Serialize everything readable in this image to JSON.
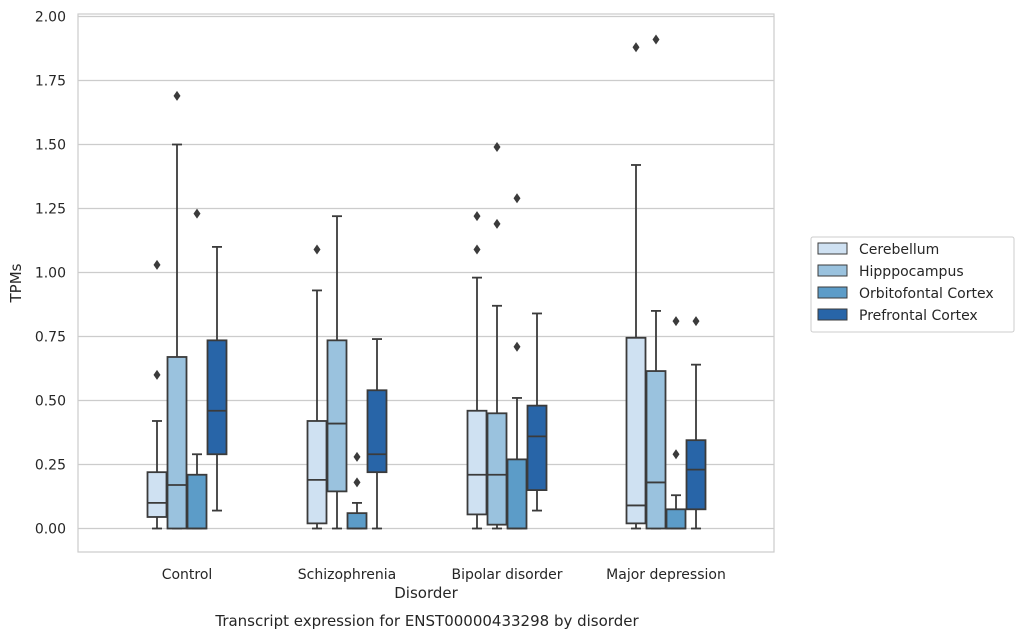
{
  "chart_data": {
    "type": "box",
    "title": "",
    "caption": "Transcript expression for ENST00000433298 by disorder",
    "xlabel": "Disorder",
    "ylabel": "TPMs",
    "ylim": [
      -0.09,
      2.01
    ],
    "yticks": [
      "0.00",
      "0.25",
      "0.50",
      "0.75",
      "1.00",
      "1.25",
      "1.50",
      "1.75",
      "2.00"
    ],
    "grid": "horizontal",
    "legend_position": "right",
    "categories": [
      "Control",
      "Schizophrenia",
      "Bipolar disorder",
      "Major depression"
    ],
    "series": [
      {
        "name": "Cerebellum",
        "color": "#cfe1f2",
        "boxes": [
          {
            "low": 0.0,
            "q1": 0.045,
            "median": 0.1,
            "q3": 0.22,
            "high": 0.42,
            "outliers": [
              0.6,
              1.03
            ]
          },
          {
            "low": 0.0,
            "q1": 0.02,
            "median": 0.19,
            "q3": 0.42,
            "high": 0.93,
            "outliers": [
              1.09
            ]
          },
          {
            "low": 0.0,
            "q1": 0.055,
            "median": 0.21,
            "q3": 0.46,
            "high": 0.98,
            "outliers": [
              1.09,
              1.22
            ]
          },
          {
            "low": 0.0,
            "q1": 0.02,
            "median": 0.09,
            "q3": 0.745,
            "high": 1.42,
            "outliers": [
              1.88
            ]
          }
        ]
      },
      {
        "name": "Hipppocampus",
        "color": "#9ac2de",
        "boxes": [
          {
            "low": 0.0,
            "q1": 0.0,
            "median": 0.17,
            "q3": 0.67,
            "high": 1.5,
            "outliers": [
              1.69
            ]
          },
          {
            "low": 0.0,
            "q1": 0.145,
            "median": 0.41,
            "q3": 0.735,
            "high": 1.22,
            "outliers": []
          },
          {
            "low": 0.0,
            "q1": 0.015,
            "median": 0.21,
            "q3": 0.45,
            "high": 0.87,
            "outliers": [
              1.19,
              1.49
            ]
          },
          {
            "low": 0.0,
            "q1": 0.0,
            "median": 0.18,
            "q3": 0.615,
            "high": 0.85,
            "outliers": [
              1.91
            ]
          }
        ]
      },
      {
        "name": "Orbitofontal Cortex",
        "color": "#5c9cc8",
        "boxes": [
          {
            "low": 0.0,
            "q1": 0.0,
            "median": 0.0,
            "q3": 0.21,
            "high": 0.29,
            "outliers": [
              1.23
            ]
          },
          {
            "low": 0.0,
            "q1": 0.0,
            "median": 0.0,
            "q3": 0.06,
            "high": 0.1,
            "outliers": [
              0.18,
              0.28
            ]
          },
          {
            "low": 0.0,
            "q1": 0.0,
            "median": 0.0,
            "q3": 0.27,
            "high": 0.51,
            "outliers": [
              0.71,
              1.29
            ]
          },
          {
            "low": 0.0,
            "q1": 0.0,
            "median": 0.0,
            "q3": 0.075,
            "high": 0.13,
            "outliers": [
              0.29,
              0.81
            ]
          }
        ]
      },
      {
        "name": "Prefrontal Cortex",
        "color": "#2865a8",
        "boxes": [
          {
            "low": 0.07,
            "q1": 0.29,
            "median": 0.46,
            "q3": 0.735,
            "high": 1.1,
            "outliers": []
          },
          {
            "low": 0.0,
            "q1": 0.22,
            "median": 0.29,
            "q3": 0.54,
            "high": 0.74,
            "outliers": []
          },
          {
            "low": 0.07,
            "q1": 0.15,
            "median": 0.36,
            "q3": 0.48,
            "high": 0.84,
            "outliers": []
          },
          {
            "low": 0.0,
            "q1": 0.075,
            "median": 0.23,
            "q3": 0.345,
            "high": 0.64,
            "outliers": [
              0.81
            ]
          }
        ]
      }
    ]
  }
}
